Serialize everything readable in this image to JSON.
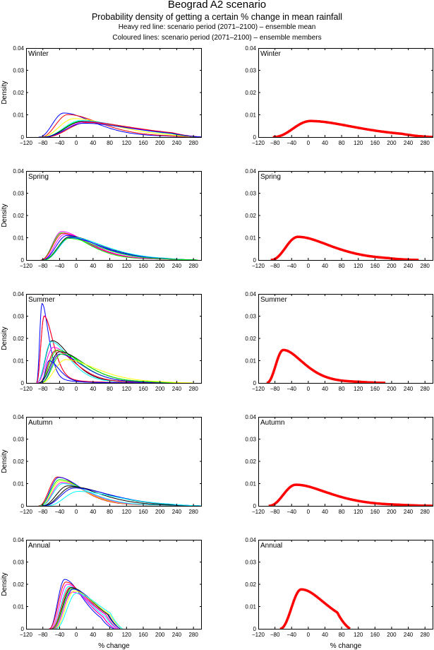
{
  "header": {
    "title": "Beograd A2 scenario",
    "subtitle": "Probability density of getting a certain % change in mean rainfall",
    "note1": "Heavy red line: scenario period (2071–2100) – ensemble mean",
    "note2": "Coloured lines: scenario period (2071–2100) – ensemble members"
  },
  "chart_data": {
    "type": "line",
    "title": "Beograd A2 scenario",
    "xlabel": "% change",
    "ylabel": "Density",
    "xlim": [
      -120,
      300
    ],
    "ylim": [
      0,
      0.04
    ],
    "xticks": [
      -120,
      -80,
      -40,
      0,
      40,
      80,
      120,
      160,
      200,
      240,
      280
    ],
    "xtick_labels": [
      "−120",
      "−80",
      "−40",
      "0",
      "40",
      "80",
      "120",
      "160",
      "200",
      "240",
      "280"
    ],
    "yticks": [
      0,
      0.01,
      0.02,
      0.03,
      0.04
    ],
    "ytick_labels": [
      "0",
      "0.01",
      "0.02",
      "0.03",
      "0.04"
    ],
    "grid": false,
    "member_colors": [
      "#0000ff",
      "#ff0000",
      "#ffff00",
      "#00ffff",
      "#00ff00",
      "#ff00ff",
      "#000000"
    ],
    "mean_color": "#ff0000",
    "panels": [
      {
        "season": "Winter",
        "mean": {
          "start": -85,
          "end": 300,
          "peak_x": 5,
          "peak_y": 0.0072
        },
        "members": [
          {
            "color": "#0000ff",
            "start": -90,
            "end": 300,
            "peak_x": -30,
            "peak_y": 0.0108
          },
          {
            "color": "#ff0000",
            "start": -85,
            "end": 300,
            "peak_x": -20,
            "peak_y": 0.0101
          },
          {
            "color": "#ffff00",
            "start": -85,
            "end": 300,
            "peak_x": -5,
            "peak_y": 0.0083
          },
          {
            "color": "#00ffff",
            "start": -80,
            "end": 300,
            "peak_x": 10,
            "peak_y": 0.0074
          },
          {
            "color": "#00ff00",
            "start": -80,
            "end": 300,
            "peak_x": 12,
            "peak_y": 0.0071
          },
          {
            "color": "#000000",
            "start": -80,
            "end": 300,
            "peak_x": 15,
            "peak_y": 0.007
          },
          {
            "color": "#ff00ff",
            "start": -75,
            "end": 300,
            "peak_x": 20,
            "peak_y": 0.0068
          },
          {
            "color": "#ff0000",
            "start": -75,
            "end": 300,
            "peak_x": 25,
            "peak_y": 0.0065
          },
          {
            "color": "#0000ff",
            "start": -80,
            "end": 300,
            "peak_x": 18,
            "peak_y": 0.0062
          }
        ]
      },
      {
        "season": "Spring",
        "mean": {
          "start": -90,
          "end": 265,
          "peak_x": -25,
          "peak_y": 0.0104
        },
        "members": [
          {
            "color": "#ff00ff",
            "start": -85,
            "end": 290,
            "peak_x": -35,
            "peak_y": 0.0128
          },
          {
            "color": "#00ff00",
            "start": -85,
            "end": 290,
            "peak_x": -35,
            "peak_y": 0.0122
          },
          {
            "color": "#ff0000",
            "start": -85,
            "end": 290,
            "peak_x": -32,
            "peak_y": 0.012
          },
          {
            "color": "#ff00ff",
            "start": -82,
            "end": 290,
            "peak_x": -28,
            "peak_y": 0.0115
          },
          {
            "color": "#0000ff",
            "start": -82,
            "end": 290,
            "peak_x": -22,
            "peak_y": 0.011
          },
          {
            "color": "#000000",
            "start": -80,
            "end": 290,
            "peak_x": -15,
            "peak_y": 0.0105
          },
          {
            "color": "#00ffff",
            "start": -78,
            "end": 290,
            "peak_x": -12,
            "peak_y": 0.0102
          },
          {
            "color": "#0000ff",
            "start": -78,
            "end": 290,
            "peak_x": -15,
            "peak_y": 0.01
          },
          {
            "color": "#00ff00",
            "start": -78,
            "end": 290,
            "peak_x": -18,
            "peak_y": 0.0097
          }
        ]
      },
      {
        "season": "Summer",
        "mean": {
          "start": -100,
          "end": 185,
          "peak_x": -60,
          "peak_y": 0.0148
        },
        "members": [
          {
            "color": "#0000ff",
            "start": -95,
            "end": 200,
            "peak_x": -82,
            "peak_y": 0.0357
          },
          {
            "color": "#ff00ff",
            "start": -95,
            "end": 200,
            "peak_x": -77,
            "peak_y": 0.0302
          },
          {
            "color": "#ff0000",
            "start": -95,
            "end": 200,
            "peak_x": -77,
            "peak_y": 0.03
          },
          {
            "color": "#000000",
            "start": -95,
            "end": 220,
            "peak_x": -58,
            "peak_y": 0.019
          },
          {
            "color": "#00ffff",
            "start": -95,
            "end": 220,
            "peak_x": -60,
            "peak_y": 0.0185
          },
          {
            "color": "#ff00ff",
            "start": -95,
            "end": 220,
            "peak_x": -55,
            "peak_y": 0.016
          },
          {
            "color": "#ff0000",
            "start": -90,
            "end": 220,
            "peak_x": -50,
            "peak_y": 0.0145
          },
          {
            "color": "#00ff00",
            "start": -90,
            "end": 240,
            "peak_x": -45,
            "peak_y": 0.0148
          },
          {
            "color": "#000000",
            "start": -90,
            "end": 240,
            "peak_x": -40,
            "peak_y": 0.014
          },
          {
            "color": "#0000ff",
            "start": -85,
            "end": 240,
            "peak_x": -40,
            "peak_y": 0.013
          },
          {
            "color": "#00ff00",
            "start": -85,
            "end": 260,
            "peak_x": -35,
            "peak_y": 0.013
          },
          {
            "color": "#ffff00",
            "start": -85,
            "end": 280,
            "peak_x": -25,
            "peak_y": 0.0105
          },
          {
            "color": "#0000ff",
            "start": -85,
            "end": 180,
            "peak_x": -65,
            "peak_y": 0.01
          }
        ]
      },
      {
        "season": "Autumn",
        "mean": {
          "start": -95,
          "end": 300,
          "peak_x": -30,
          "peak_y": 0.0095
        },
        "members": [
          {
            "color": "#ff0000",
            "start": -90,
            "end": 300,
            "peak_x": -45,
            "peak_y": 0.013
          },
          {
            "color": "#0000ff",
            "start": -88,
            "end": 300,
            "peak_x": -42,
            "peak_y": 0.0128
          },
          {
            "color": "#00ff00",
            "start": -88,
            "end": 300,
            "peak_x": -40,
            "peak_y": 0.0118
          },
          {
            "color": "#ffff00",
            "start": -85,
            "end": 300,
            "peak_x": -38,
            "peak_y": 0.0112
          },
          {
            "color": "#ff00ff",
            "start": -85,
            "end": 300,
            "peak_x": -35,
            "peak_y": 0.0105
          },
          {
            "color": "#00ffff",
            "start": -85,
            "end": 300,
            "peak_x": -32,
            "peak_y": 0.01
          },
          {
            "color": "#000000",
            "start": -82,
            "end": 300,
            "peak_x": -20,
            "peak_y": 0.009
          },
          {
            "color": "#000000",
            "start": -80,
            "end": 300,
            "peak_x": -10,
            "peak_y": 0.0085
          },
          {
            "color": "#0000ff",
            "start": -78,
            "end": 300,
            "peak_x": -5,
            "peak_y": 0.008
          },
          {
            "color": "#00ffff",
            "start": -70,
            "end": 300,
            "peak_x": 5,
            "peak_y": 0.0065
          }
        ]
      },
      {
        "season": "Annual",
        "mean": {
          "start": -68,
          "end": 100,
          "peak_x": -17,
          "peak_y": 0.0177
        },
        "members": [
          {
            "color": "#0000ff",
            "start": -65,
            "end": 90,
            "peak_x": -28,
            "peak_y": 0.0222
          },
          {
            "color": "#ff0000",
            "start": -65,
            "end": 95,
            "peak_x": -25,
            "peak_y": 0.021
          },
          {
            "color": "#ff00ff",
            "start": -62,
            "end": 95,
            "peak_x": -22,
            "peak_y": 0.02
          },
          {
            "color": "#00ffff",
            "start": -60,
            "end": 100,
            "peak_x": -18,
            "peak_y": 0.019
          },
          {
            "color": "#ff0000",
            "start": -60,
            "end": 100,
            "peak_x": -15,
            "peak_y": 0.0185
          },
          {
            "color": "#000000",
            "start": -58,
            "end": 105,
            "peak_x": -12,
            "peak_y": 0.0185
          },
          {
            "color": "#00ff00",
            "start": -58,
            "end": 105,
            "peak_x": -10,
            "peak_y": 0.018
          },
          {
            "color": "#0000ff",
            "start": -55,
            "end": 105,
            "peak_x": -8,
            "peak_y": 0.0178
          },
          {
            "color": "#ff00ff",
            "start": -55,
            "end": 100,
            "peak_x": -10,
            "peak_y": 0.0165
          },
          {
            "color": "#ffff00",
            "start": -52,
            "end": 110,
            "peak_x": -5,
            "peak_y": 0.017
          },
          {
            "color": "#00ffff",
            "start": -50,
            "end": 110,
            "peak_x": 0,
            "peak_y": 0.016
          }
        ]
      }
    ]
  }
}
